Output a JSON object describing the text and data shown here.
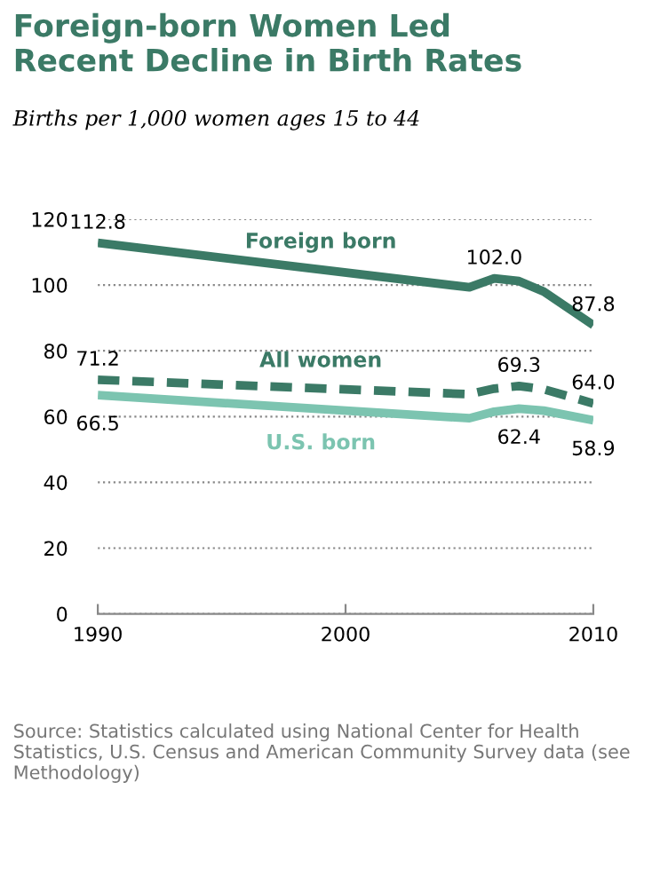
{
  "chart_data": {
    "type": "line",
    "title": "Foreign-born Women Led\nRecent Decline in Birth Rates",
    "subtitle": "Births per 1,000 women ages 15 to 44",
    "x": [
      1990,
      2005,
      2006,
      2007,
      2008,
      2010
    ],
    "series": [
      {
        "name": "Foreign born",
        "color": "#3b7a66",
        "line_style": "solid",
        "values": [
          112.8,
          99.3,
          102.0,
          101.2,
          98.0,
          87.8
        ],
        "value_labels": [
          "112.8",
          null,
          "102.0",
          null,
          null,
          "87.8"
        ]
      },
      {
        "name": "All women",
        "color": "#3b7a66",
        "line_style": "dashed",
        "values": [
          71.2,
          66.8,
          68.5,
          69.3,
          68.3,
          64.0
        ],
        "value_labels": [
          "71.2",
          null,
          null,
          "69.3",
          null,
          "64.0"
        ]
      },
      {
        "name": "U.S. born",
        "color": "#7cc4b0",
        "line_style": "solid",
        "values": [
          66.5,
          59.5,
          61.5,
          62.4,
          61.8,
          58.9
        ],
        "value_labels": [
          "66.5",
          null,
          null,
          "62.4",
          null,
          "58.9"
        ]
      }
    ],
    "xlim": [
      1990,
      2010
    ],
    "xticks": [
      1990,
      2000,
      2010
    ],
    "ylim": [
      0,
      120
    ],
    "yticks": [
      0,
      20,
      40,
      60,
      80,
      100,
      120
    ],
    "grid": "y",
    "legend": false,
    "marker": "none",
    "annotations": [
      "Source: Statistics calculated using National Center for Health Statistics, U.S. Census and American Community Survey data (see Methodology)"
    ]
  }
}
